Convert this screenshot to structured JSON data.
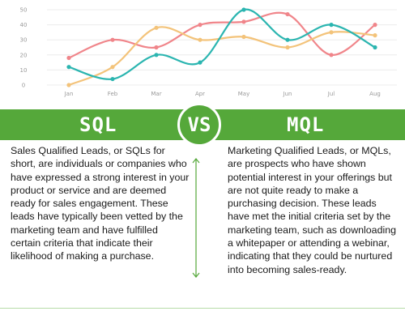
{
  "chart_data": {
    "type": "line",
    "categories": [
      "Jan",
      "Feb",
      "Mar",
      "Apr",
      "May",
      "Jun",
      "Jul",
      "Aug"
    ],
    "x": [
      1,
      2,
      3,
      4,
      5,
      6,
      7,
      8
    ],
    "yticks": [
      0,
      10,
      20,
      30,
      40,
      50
    ],
    "ylim": [
      0,
      50
    ],
    "xlim": [
      0.5,
      8.5
    ],
    "grid": true,
    "series": [
      {
        "color": "#f0858a",
        "x": [
          1,
          2,
          3,
          4,
          5,
          6,
          7,
          8
        ],
        "values": [
          18,
          30,
          25,
          40,
          42,
          47,
          20,
          40
        ]
      },
      {
        "color": "#f3c37a",
        "x": [
          1,
          2,
          3,
          4,
          5,
          6,
          7,
          8
        ],
        "values": [
          0,
          12,
          38,
          30,
          32,
          25,
          35,
          33
        ]
      },
      {
        "color": "#2bb5b0",
        "x": [
          1,
          2,
          3,
          4,
          5,
          6,
          7,
          8
        ],
        "values": [
          12,
          4,
          20,
          15,
          50,
          30,
          40,
          25
        ]
      }
    ]
  },
  "comparison": {
    "left_title": "SQL",
    "vs_label": "VS",
    "right_title": "MQL",
    "left_text": "Sales Qualified Leads, or SQLs for short, are individuals or companies who have expressed a strong interest in your product or service and are deemed ready for sales engagement. These leads have typically been vetted by the marketing team and have fulfilled certain criteria that indicate their likelihood of making a purchase.",
    "right_text": "Marketing Qualified Leads, or MQLs, are prospects who have shown potential interest in your offerings but are not quite ready to make a purchasing decision. These leads have met the initial criteria set by the marketing team, such as downloading a whitepaper or attending a webinar, indicating that they could be nurtured into becoming sales-ready."
  },
  "colors": {
    "accent_green": "#55a83a",
    "divider_green": "#55a83a",
    "footer_line": "#b7dba8"
  }
}
